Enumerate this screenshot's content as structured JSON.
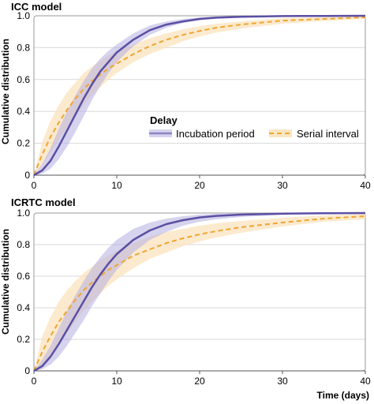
{
  "colors": {
    "incubation": "#5b4fa3",
    "incubation_band": "#b5aee0",
    "serial": "#f0a531",
    "serial_band": "#fbe3bd",
    "grid": "#d9d9d9",
    "frame": "#9a9a9a"
  },
  "chart_data": [
    {
      "type": "line",
      "title": "ICC model",
      "ylabel": "Cumulative distribution",
      "xlabel": "",
      "xlim": [
        0,
        40
      ],
      "ylim": [
        0,
        1
      ],
      "xticks": [
        "0",
        "10",
        "20",
        "30",
        "40"
      ],
      "yticks": [
        "0",
        "0.2",
        "0.4",
        "0.6",
        "0.8",
        "1.0"
      ],
      "grid": "horizontal",
      "legend": {
        "title": "Delay",
        "placement": "center-right",
        "entries": [
          "Incubation period",
          "Serial interval"
        ]
      },
      "x": [
        0,
        1,
        2,
        3,
        4,
        5,
        6,
        7,
        8,
        9,
        10,
        12,
        14,
        16,
        18,
        20,
        22,
        25,
        30,
        35,
        40
      ],
      "series": [
        {
          "name": "Incubation period",
          "style": "solid",
          "values": [
            0,
            0.03,
            0.09,
            0.18,
            0.28,
            0.38,
            0.48,
            0.57,
            0.65,
            0.71,
            0.77,
            0.85,
            0.91,
            0.945,
            0.965,
            0.98,
            0.988,
            0.994,
            0.998,
            0.999,
            1.0
          ],
          "lower": [
            0,
            0.01,
            0.04,
            0.1,
            0.18,
            0.27,
            0.37,
            0.47,
            0.56,
            0.64,
            0.71,
            0.81,
            0.88,
            0.925,
            0.955,
            0.972,
            0.982,
            0.99,
            0.996,
            0.998,
            0.999
          ],
          "upper": [
            0,
            0.07,
            0.17,
            0.29,
            0.4,
            0.5,
            0.59,
            0.67,
            0.73,
            0.78,
            0.82,
            0.89,
            0.94,
            0.965,
            0.98,
            0.99,
            0.995,
            0.998,
            1.0,
            1.0,
            1.0
          ]
        },
        {
          "name": "Serial interval",
          "style": "dashed",
          "values": [
            0,
            0.13,
            0.24,
            0.33,
            0.41,
            0.48,
            0.54,
            0.59,
            0.63,
            0.67,
            0.7,
            0.76,
            0.81,
            0.85,
            0.88,
            0.905,
            0.925,
            0.945,
            0.97,
            0.98,
            0.99
          ],
          "lower": [
            0,
            0.06,
            0.14,
            0.22,
            0.3,
            0.37,
            0.44,
            0.5,
            0.55,
            0.6,
            0.64,
            0.71,
            0.76,
            0.8,
            0.84,
            0.87,
            0.895,
            0.92,
            0.95,
            0.968,
            0.98
          ],
          "upper": [
            0,
            0.21,
            0.34,
            0.44,
            0.52,
            0.58,
            0.64,
            0.68,
            0.72,
            0.75,
            0.78,
            0.82,
            0.86,
            0.89,
            0.915,
            0.935,
            0.95,
            0.965,
            0.985,
            0.99,
            0.995
          ]
        }
      ]
    },
    {
      "type": "line",
      "title": "ICRTC model",
      "ylabel": "Cumulative distribution",
      "xlabel": "Time (days)",
      "xlim": [
        0,
        40
      ],
      "ylim": [
        0,
        1
      ],
      "xticks": [
        "0",
        "10",
        "20",
        "30",
        "40"
      ],
      "yticks": [
        "0",
        "0.2",
        "0.4",
        "0.6",
        "0.8",
        "1.0"
      ],
      "grid": "horizontal",
      "x": [
        0,
        1,
        2,
        3,
        4,
        5,
        6,
        7,
        8,
        9,
        10,
        12,
        14,
        16,
        18,
        20,
        22,
        25,
        30,
        35,
        40
      ],
      "series": [
        {
          "name": "Incubation period",
          "style": "solid",
          "values": [
            0,
            0.03,
            0.09,
            0.17,
            0.26,
            0.35,
            0.44,
            0.53,
            0.61,
            0.68,
            0.74,
            0.83,
            0.89,
            0.93,
            0.955,
            0.972,
            0.982,
            0.99,
            0.996,
            0.999,
            1.0
          ],
          "lower": [
            0,
            0.01,
            0.04,
            0.09,
            0.16,
            0.24,
            0.32,
            0.41,
            0.49,
            0.57,
            0.64,
            0.75,
            0.83,
            0.88,
            0.92,
            0.945,
            0.96,
            0.975,
            0.988,
            0.995,
            0.998
          ],
          "upper": [
            0,
            0.07,
            0.16,
            0.27,
            0.38,
            0.48,
            0.57,
            0.65,
            0.72,
            0.78,
            0.83,
            0.9,
            0.94,
            0.965,
            0.98,
            0.99,
            0.995,
            0.998,
            1.0,
            1.0,
            1.0
          ]
        },
        {
          "name": "Serial interval",
          "style": "dashed",
          "values": [
            0,
            0.12,
            0.22,
            0.31,
            0.38,
            0.45,
            0.51,
            0.56,
            0.6,
            0.64,
            0.67,
            0.73,
            0.77,
            0.81,
            0.84,
            0.865,
            0.885,
            0.91,
            0.94,
            0.965,
            0.98
          ],
          "lower": [
            0,
            0.04,
            0.1,
            0.17,
            0.24,
            0.31,
            0.38,
            0.44,
            0.49,
            0.54,
            0.58,
            0.65,
            0.71,
            0.75,
            0.79,
            0.82,
            0.845,
            0.875,
            0.915,
            0.945,
            0.96
          ],
          "upper": [
            0,
            0.22,
            0.34,
            0.44,
            0.51,
            0.57,
            0.62,
            0.66,
            0.7,
            0.73,
            0.76,
            0.81,
            0.85,
            0.88,
            0.9,
            0.92,
            0.935,
            0.95,
            0.97,
            0.985,
            0.995
          ]
        }
      ]
    }
  ]
}
